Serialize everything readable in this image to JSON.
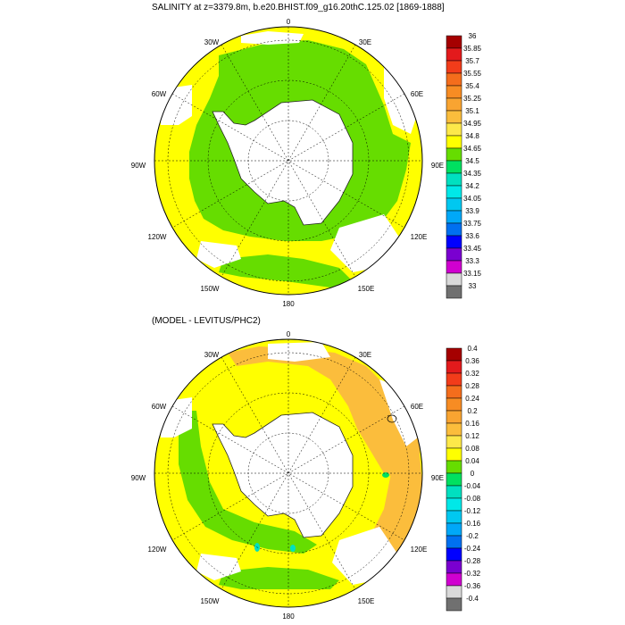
{
  "maps": [
    {
      "title": "SALINITY at z=3379.8m, b.e20.BHIST.f09_g16.20thC.125.02 [1869-1888]",
      "lon_labels": {
        "top": "0",
        "tl": "30W",
        "tr": "30E",
        "l60": "60W",
        "r60": "60E",
        "l90": "90W",
        "r90": "90E",
        "l120": "120W",
        "r120": "120E",
        "l150": "150W",
        "r150": "150E",
        "bottom": "180"
      },
      "colorbar": {
        "labels": [
          "36",
          "35.85",
          "35.7",
          "35.55",
          "35.4",
          "35.25",
          "35.1",
          "34.95",
          "34.8",
          "34.65",
          "34.5",
          "34.35",
          "34.2",
          "34.05",
          "33.9",
          "33.75",
          "33.6",
          "33.45",
          "33.3",
          "33.15",
          "33"
        ],
        "colors": [
          "#a50000",
          "#e31a1c",
          "#f23c1a",
          "#f46d1c",
          "#f78c23",
          "#f9a431",
          "#fbbd3c",
          "#fde84a",
          "#ffff00",
          "#66dd00",
          "#00e060",
          "#00e0c0",
          "#00e8e8",
          "#00c8f0",
          "#00a8f8",
          "#0070f0",
          "#0000ff",
          "#7a00d0",
          "#d000d0",
          "#d9d9d9",
          "#707070"
        ]
      },
      "ocean_color": "#ffff00",
      "mid_color": "#66dd00"
    },
    {
      "title": "(MODEL - LEVITUS/PHC2)",
      "lon_labels": {
        "top": "0",
        "tl": "30W",
        "tr": "30E",
        "l60": "60W",
        "r60": "60E",
        "l90": "90W",
        "r90": "90E",
        "l120": "120W",
        "r120": "120E",
        "l150": "150W",
        "r150": "150E",
        "bottom": "180"
      },
      "colorbar": {
        "labels": [
          "0.4",
          "0.36",
          "0.32",
          "0.28",
          "0.24",
          "0.2",
          "0.16",
          "0.12",
          "0.08",
          "0.04",
          "0",
          "-0.04",
          "-0.08",
          "-0.12",
          "-0.16",
          "-0.2",
          "-0.24",
          "-0.28",
          "-0.32",
          "-0.36",
          "-0.4"
        ],
        "colors": [
          "#a50000",
          "#e31a1c",
          "#f23c1a",
          "#f46d1c",
          "#f78c23",
          "#f9a431",
          "#fbbd3c",
          "#fde84a",
          "#ffff00",
          "#66dd00",
          "#00e060",
          "#00e0c0",
          "#00e8e8",
          "#00c8f0",
          "#00a8f8",
          "#0070f0",
          "#0000ff",
          "#7a00d0",
          "#d000d0",
          "#d9d9d9",
          "#707070"
        ]
      },
      "ocean_color": "#ffff00",
      "mid_color": "#66dd00",
      "warm_color": "#fbbd3c"
    }
  ]
}
